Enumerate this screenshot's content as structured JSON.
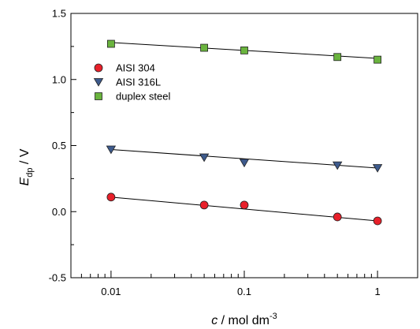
{
  "chart_data": {
    "type": "scatter",
    "xscale": "log",
    "xlim": [
      0.005,
      2
    ],
    "ylim": [
      -0.5,
      1.5
    ],
    "x_ticks": [
      {
        "value": 0.01,
        "label": "0.01"
      },
      {
        "value": 0.1,
        "label": "0.1"
      },
      {
        "value": 1,
        "label": "1"
      }
    ],
    "y_ticks": [
      {
        "value": -0.5,
        "label": "-0.5"
      },
      {
        "value": 0.0,
        "label": "0.0"
      },
      {
        "value": 0.5,
        "label": "0.5"
      },
      {
        "value": 1.0,
        "label": "1.0"
      },
      {
        "value": 1.5,
        "label": "1.5"
      }
    ],
    "xlabel": {
      "italic": "c",
      "text": " / mol dm",
      "sup": "-3"
    },
    "ylabel": {
      "italic": "E",
      "sub": "dp",
      "text": " / V"
    },
    "legend_position": "upper-left",
    "series": [
      {
        "name": "AISI 304",
        "marker": "circle",
        "color": "#e8202a",
        "x": [
          0.01,
          0.05,
          0.1,
          0.5,
          1
        ],
        "y": [
          0.11,
          0.05,
          0.05,
          -0.04,
          -0.07
        ],
        "fit": [
          [
            0.01,
            0.11
          ],
          [
            1,
            -0.07
          ]
        ]
      },
      {
        "name": "AISI 316L",
        "marker": "triangle-down",
        "color": "#3d5a8c",
        "x": [
          0.01,
          0.05,
          0.1,
          0.5,
          1
        ],
        "y": [
          0.47,
          0.41,
          0.37,
          0.35,
          0.33
        ],
        "fit": [
          [
            0.01,
            0.47
          ],
          [
            1,
            0.33
          ]
        ]
      },
      {
        "name": "duplex steel",
        "marker": "square",
        "color": "#6ab43e",
        "x": [
          0.01,
          0.05,
          0.1,
          0.5,
          1
        ],
        "y": [
          1.27,
          1.24,
          1.22,
          1.17,
          1.15
        ],
        "fit": [
          [
            0.01,
            1.28
          ],
          [
            1,
            1.16
          ]
        ]
      }
    ]
  }
}
